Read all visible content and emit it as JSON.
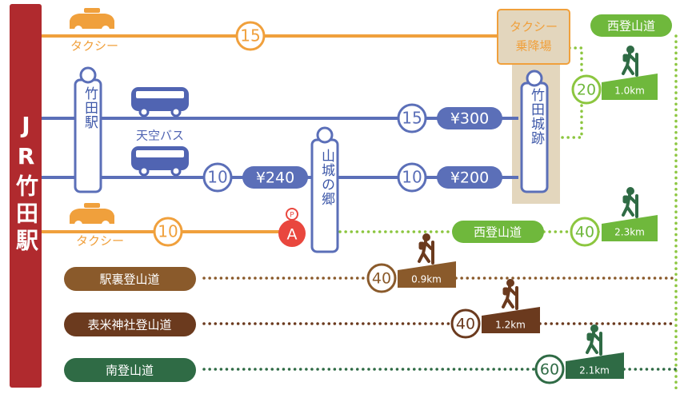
{
  "station": "JR竹田駅",
  "stops": {
    "station": "竹田駅",
    "yamashiro": "山城の郷",
    "castle": "竹田城跡",
    "taxi_stand": [
      "タクシー",
      "乗降場"
    ]
  },
  "bus_label": "天空バス",
  "taxi_rows": [
    {
      "label": "タクシー",
      "minutes": 15
    },
    {
      "label": "タクシー",
      "minutes": 10
    }
  ],
  "bus_rows": [
    {
      "segments": [
        {
          "minutes": 15,
          "fare": "¥300"
        }
      ]
    },
    {
      "segments": [
        {
          "minutes": 10,
          "fare": "¥240"
        },
        {
          "minutes": 10,
          "fare": "¥200"
        }
      ]
    }
  ],
  "parking": {
    "icon": "P",
    "label": "A"
  },
  "trails": [
    {
      "name": "西登山道",
      "minutes": 20,
      "distance": "1.0km"
    },
    {
      "name": "西登山道",
      "minutes": 40,
      "distance": "2.3km"
    },
    {
      "name": "駅裏登山道",
      "minutes": 40,
      "distance": "0.9km"
    },
    {
      "name": "表米神社登山道",
      "minutes": 40,
      "distance": "1.2km"
    },
    {
      "name": "南登山道",
      "minutes": 60,
      "distance": "2.1km"
    }
  ]
}
